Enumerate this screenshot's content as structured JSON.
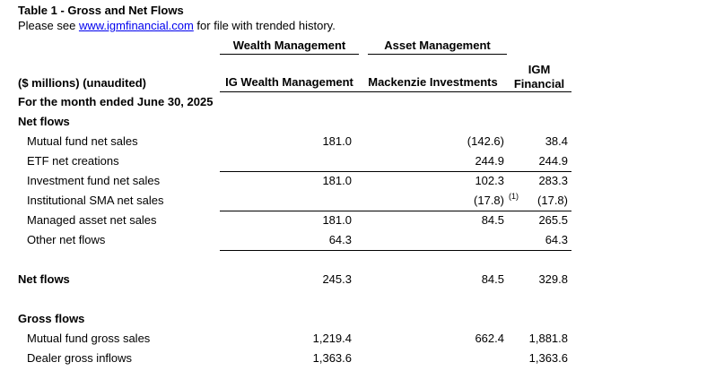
{
  "page": {
    "title": "Table 1 - Gross and Net Flows",
    "subtitle_prefix": "Please see ",
    "link_text": "www.igmfinancial.com",
    "subtitle_suffix": " for file with trended history.",
    "link_color": "#0000EE",
    "text_color": "#000000",
    "background_color": "#ffffff"
  },
  "table": {
    "group_headers": {
      "wealth": "Wealth Management",
      "asset": "Asset Management"
    },
    "column_headers": {
      "label": "($ millions) (unaudited)",
      "ig": "IG Wealth Management",
      "mk": "Mackenzie Investments",
      "igm_line1": "IGM",
      "igm_line2": "Financial"
    },
    "rows": [
      {
        "type": "period",
        "label": "For the month ended June 30, 2025"
      },
      {
        "type": "section",
        "label": "Net flows"
      },
      {
        "type": "data",
        "label": "Mutual fund net sales",
        "ig": "181.0",
        "mk": "(142.6)",
        "igm": "38.4"
      },
      {
        "type": "data",
        "label": "ETF net creations",
        "ig": "",
        "mk": "244.9",
        "igm": "244.9",
        "rule": true
      },
      {
        "type": "data",
        "label": "Investment fund net sales",
        "ig": "181.0",
        "mk": "102.3",
        "igm": "283.3"
      },
      {
        "type": "data",
        "label": "Institutional SMA net sales",
        "ig": "",
        "mk": "(17.8)",
        "mk_sup": "(1)",
        "igm": "(17.8)",
        "rule": true
      },
      {
        "type": "data",
        "label": "Managed asset net sales",
        "ig": "181.0",
        "mk": "84.5",
        "igm": "265.5"
      },
      {
        "type": "data",
        "label": "Other net flows",
        "ig": "64.3",
        "mk": "",
        "igm": "64.3",
        "rule": true
      },
      {
        "type": "spacer"
      },
      {
        "type": "total",
        "label": "Net flows",
        "ig": "245.3",
        "mk": "84.5",
        "igm": "329.8"
      },
      {
        "type": "spacer"
      },
      {
        "type": "section",
        "label": "Gross flows"
      },
      {
        "type": "data",
        "label": "Mutual fund gross sales",
        "ig": "1,219.4",
        "mk": "662.4",
        "igm": "1,881.8"
      },
      {
        "type": "data",
        "label": "Dealer gross inflows",
        "ig": "1,363.6",
        "mk": "",
        "igm": "1,363.6"
      }
    ]
  }
}
